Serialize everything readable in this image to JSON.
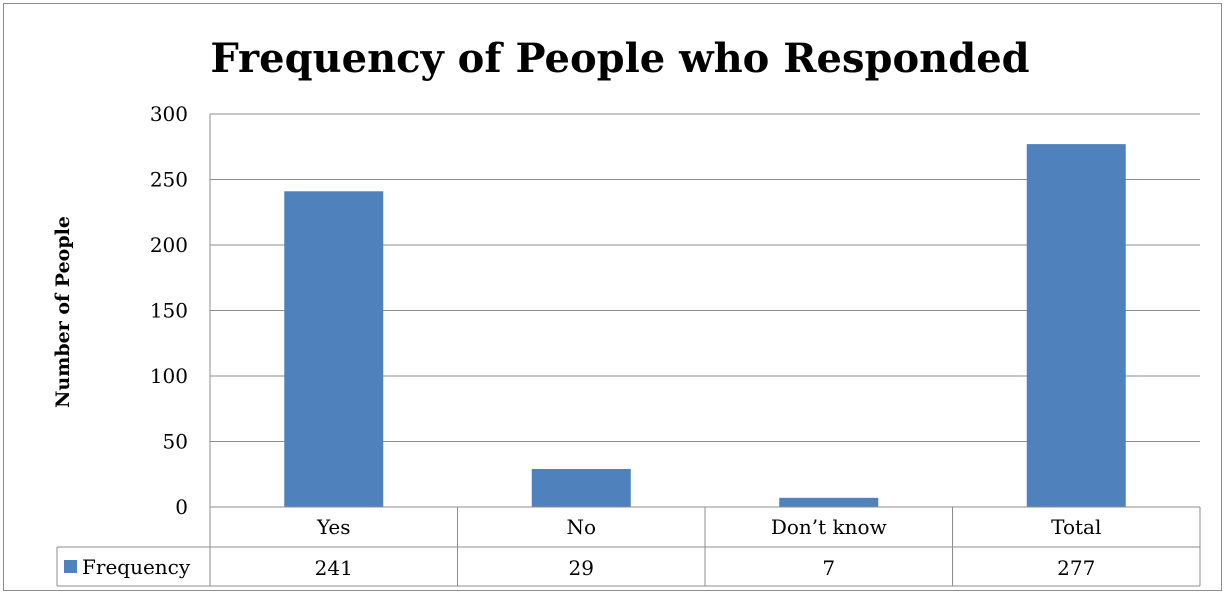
{
  "chart_data": {
    "type": "bar",
    "title": "Frequency of People who Responded",
    "ylabel": "Number of People",
    "xlabel": "",
    "categories": [
      "Yes",
      "No",
      "Don’t know",
      "Total"
    ],
    "series": [
      {
        "name": "Frequency",
        "values": [
          241,
          29,
          7,
          277
        ],
        "color": "#4f81bd"
      }
    ],
    "ylim": [
      0,
      300
    ],
    "yticks": [
      0,
      50,
      100,
      150,
      200,
      250,
      300
    ],
    "grid": true,
    "data_table": true,
    "legend_position": "data-table"
  }
}
